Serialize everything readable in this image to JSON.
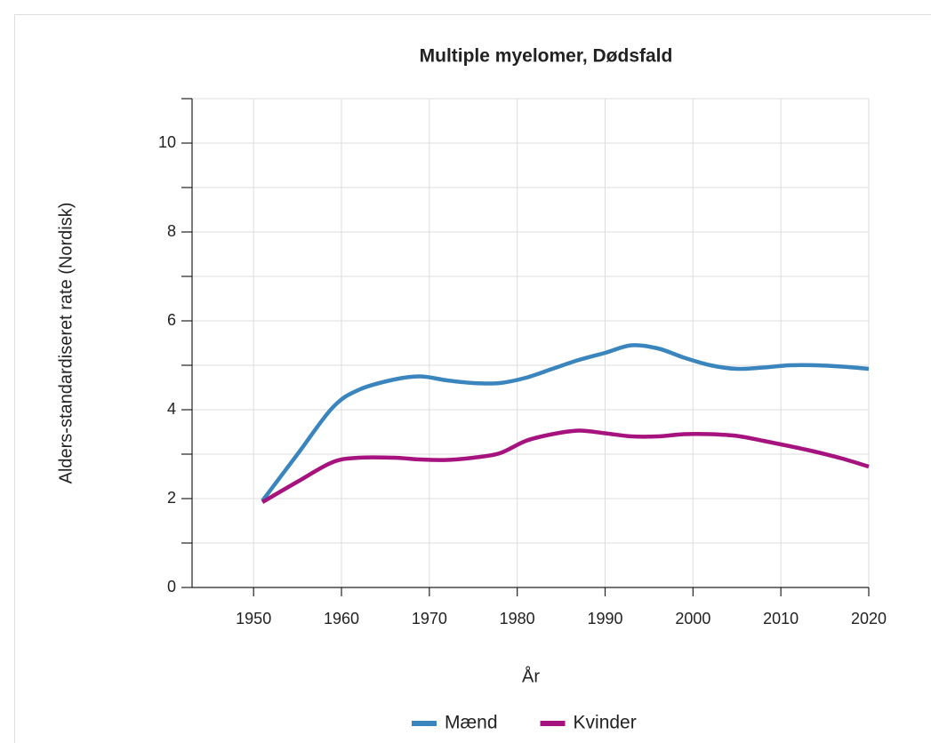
{
  "chart_data": {
    "type": "line",
    "title": "Multiple myelomer, Dødsfald",
    "x_label": "År",
    "y_label": "Alders-standardiseret rate (Nordisk)",
    "x": [
      1951,
      1955,
      1959,
      1962,
      1966,
      1969,
      1972,
      1975,
      1978,
      1981,
      1984,
      1987,
      1990,
      1993,
      1996,
      1999,
      2002,
      2005,
      2008,
      2011,
      2014,
      2017,
      2020
    ],
    "series": [
      {
        "name": "Mænd",
        "color": "#3a85bd",
        "values": [
          1.95,
          3.0,
          4.05,
          4.45,
          4.68,
          4.75,
          4.66,
          4.6,
          4.6,
          4.72,
          4.92,
          5.12,
          5.28,
          5.45,
          5.38,
          5.17,
          5.0,
          4.92,
          4.95,
          5.0,
          5.0,
          4.97,
          4.92
        ]
      },
      {
        "name": "Kvinder",
        "color": "#a6137f",
        "values": [
          1.92,
          2.38,
          2.82,
          2.92,
          2.92,
          2.88,
          2.87,
          2.92,
          3.02,
          3.3,
          3.45,
          3.53,
          3.47,
          3.4,
          3.4,
          3.45,
          3.45,
          3.41,
          3.3,
          3.18,
          3.05,
          2.9,
          2.72
        ]
      }
    ],
    "xlim": [
      1943,
      2020
    ],
    "xticks": [
      1950,
      1960,
      1970,
      1980,
      1990,
      2000,
      2010,
      2020
    ],
    "ylim": [
      0,
      11
    ],
    "yticks": [
      0,
      2,
      4,
      6,
      8,
      10
    ],
    "y_minor_ticks": [
      1,
      3,
      5,
      7,
      9,
      11
    ],
    "grid": true,
    "legend": "bottom"
  }
}
